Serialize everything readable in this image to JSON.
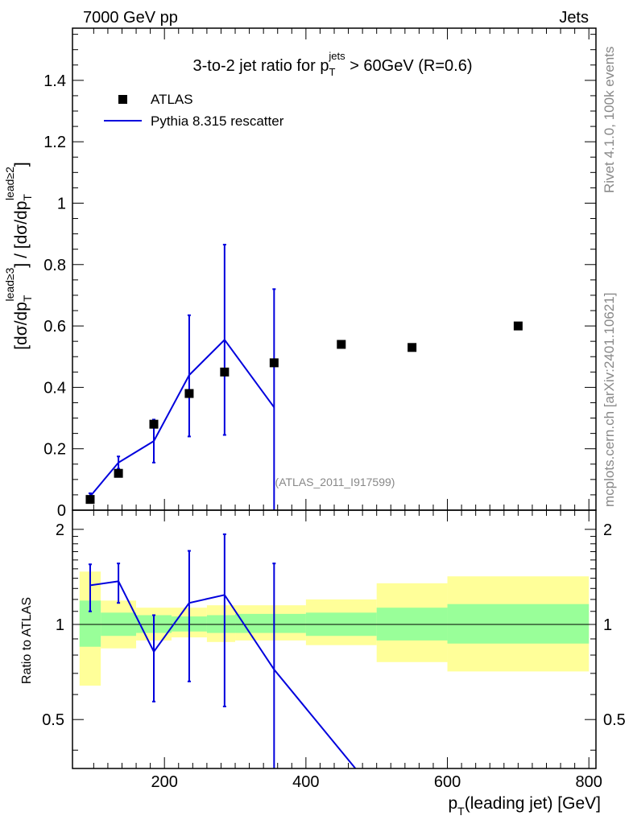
{
  "header": {
    "left": "7000 GeV pp",
    "right": "Jets",
    "side_top": "Rivet 4.1.0,  100k events",
    "side_bottom": "mcplots.cern.ch [arXiv:2401.10621]"
  },
  "colors": {
    "data_marker": "#000000",
    "mc_line": "#0000dd",
    "band_inner": "#99ff99",
    "band_outer": "#ffff99"
  },
  "chart_data": [
    {
      "type": "scatter",
      "title_parts": {
        "pre": "3-to-2 jet ratio for p",
        "sup": "jets",
        "sub": "T",
        "post": " > 60GeV (R=0.6)"
      },
      "ylabel_parts": [
        "[dσ/dp",
        "T",
        "lead≥3",
        "] / [dσ/dp",
        "T",
        "lead≥2",
        "]"
      ],
      "watermark": "(ATLAS_2011_I917599)",
      "xlim": [
        70,
        810
      ],
      "ylim": [
        0,
        1.57
      ],
      "yticks": [
        0,
        0.2,
        0.4,
        0.6,
        0.8,
        1,
        1.2,
        1.4
      ],
      "ytick_labels": [
        "0",
        "0.2",
        "0.4",
        "0.6",
        "0.8",
        "1",
        "1.2",
        "1.4"
      ],
      "legend": [
        {
          "label": "ATLAS",
          "kind": "marker"
        },
        {
          "label": "Pythia 8.315 rescatter",
          "kind": "line"
        }
      ],
      "series": [
        {
          "name": "ATLAS",
          "x": [
            95,
            135,
            185,
            235,
            285,
            355,
            450,
            550,
            700
          ],
          "y": [
            0.035,
            0.12,
            0.28,
            0.38,
            0.45,
            0.48,
            0.54,
            0.53,
            0.6
          ]
        },
        {
          "name": "Pythia 8.315 rescatter",
          "x": [
            95,
            135,
            185,
            235,
            285,
            355
          ],
          "y": [
            0.045,
            0.155,
            0.225,
            0.44,
            0.555,
            0.335
          ],
          "err_low": [
            0.01,
            0.02,
            0.07,
            0.2,
            0.31,
            0.4
          ],
          "err_high": [
            0.01,
            0.02,
            0.07,
            0.195,
            0.31,
            0.385
          ]
        }
      ]
    },
    {
      "type": "line",
      "ylabel": "Ratio to ATLAS",
      "xlabel_parts": [
        "p",
        "T",
        "(leading jet) [GeV]"
      ],
      "xlim": [
        70,
        810
      ],
      "ylim": [
        0.35,
        2.3
      ],
      "xticks": [
        200,
        400,
        600,
        800
      ],
      "xtick_labels": [
        "200",
        "400",
        "600",
        "800"
      ],
      "yticks": [
        0.5,
        1,
        2
      ],
      "ytick_labels": [
        "0.5",
        "1",
        "2"
      ],
      "bands": {
        "edges": [
          80,
          110,
          160,
          210,
          260,
          300,
          400,
          500,
          600,
          800
        ],
        "inner_low": [
          0.85,
          0.92,
          0.94,
          0.95,
          0.94,
          0.94,
          0.92,
          0.89,
          0.87
        ],
        "inner_high": [
          1.19,
          1.09,
          1.07,
          1.06,
          1.07,
          1.08,
          1.09,
          1.13,
          1.16
        ],
        "outer_low": [
          0.64,
          0.84,
          0.89,
          0.91,
          0.88,
          0.89,
          0.86,
          0.76,
          0.71
        ],
        "outer_high": [
          1.47,
          1.19,
          1.13,
          1.13,
          1.15,
          1.15,
          1.2,
          1.35,
          1.42
        ]
      },
      "series": [
        {
          "name": "Pythia 8.315 rescatter",
          "x": [
            95,
            135,
            185,
            235,
            285,
            355,
            470
          ],
          "y": [
            1.33,
            1.37,
            0.82,
            1.17,
            1.24,
            0.72,
            0.35
          ],
          "err_low": [
            0.23,
            0.2,
            0.25,
            0.51,
            0.69,
            0.72
          ],
          "err_high": [
            0.22,
            0.19,
            0.25,
            0.54,
            0.69,
            0.84
          ],
          "n_errorbars": 6
        }
      ]
    }
  ]
}
